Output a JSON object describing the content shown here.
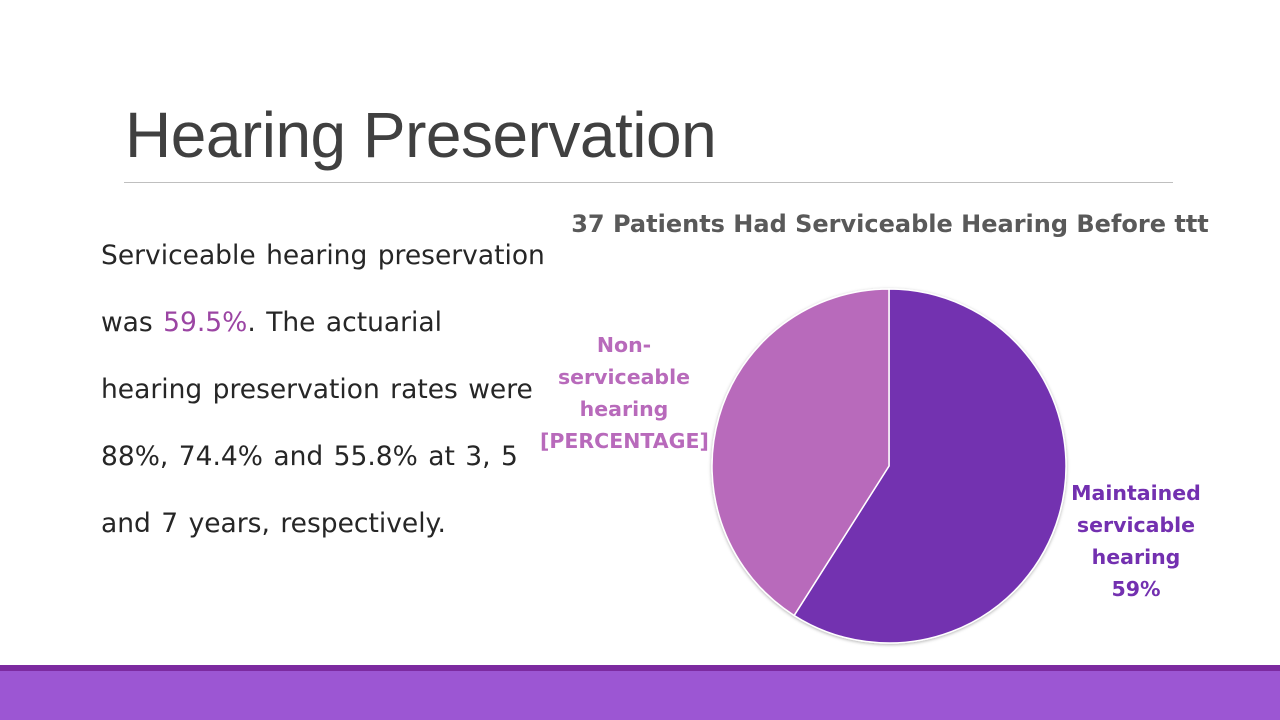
{
  "slide": {
    "title": "Hearing Preservation"
  },
  "body": {
    "text_before": "Serviceable hearing preservation was ",
    "highlight": "59.5%",
    "text_after": ". The actuarial hearing preservation rates were 88%, 74.4% and 55.8% at 3, 5 and 7 years, respectively."
  },
  "colors": {
    "title": "#404040",
    "highlight": "#9b45a3",
    "maintained": "#7330b0",
    "non_serviceable": "#b86abb",
    "footer_bar": "#9c56d3",
    "footer_line": "#7c2aa0"
  },
  "chart_data": {
    "type": "pie",
    "title": "37 Patients Had Serviceable Hearing Before ttt",
    "categories": [
      "Maintained servicable hearing",
      "Non-serviceable hearing"
    ],
    "values": [
      59,
      41
    ],
    "labels": {
      "maintained": [
        "Maintained",
        "servicable",
        "hearing",
        "59%"
      ],
      "non_serviceable": [
        "Non-",
        "serviceable",
        "hearing",
        "[PERCENTAGE]"
      ]
    }
  }
}
